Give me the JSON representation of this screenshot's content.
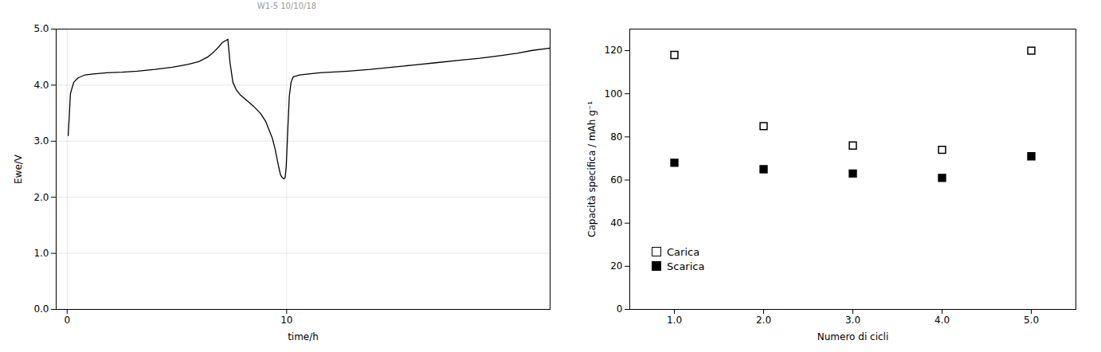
{
  "chart_data": [
    {
      "type": "line",
      "title": "W1-5 10/10/18",
      "x_label": "time/h",
      "y_label": "Ewe/V",
      "x": [
        0.05,
        0.15,
        0.3,
        0.5,
        0.8,
        1.2,
        1.8,
        2.5,
        3.2,
        4.0,
        4.8,
        5.5,
        6.0,
        6.4,
        6.7,
        6.9,
        7.05,
        7.15,
        7.25,
        7.32,
        7.32,
        7.42,
        7.55,
        7.7,
        7.9,
        8.2,
        8.5,
        8.8,
        9.05,
        9.2,
        9.35,
        9.48,
        9.58,
        9.66,
        9.72,
        9.72,
        9.8,
        9.87,
        9.93,
        9.98,
        10.05,
        10.12,
        10.2,
        10.3,
        10.3,
        10.6,
        11.0,
        11.5,
        12.0,
        12.8,
        13.8,
        14.8,
        15.8,
        16.8,
        17.8,
        18.8,
        19.8,
        20.5,
        21.2,
        21.8,
        22.0
      ],
      "values": [
        3.1,
        3.85,
        4.05,
        4.13,
        4.18,
        4.2,
        4.22,
        4.23,
        4.25,
        4.28,
        4.32,
        4.37,
        4.42,
        4.5,
        4.6,
        4.68,
        4.75,
        4.78,
        4.8,
        4.82,
        4.82,
        4.4,
        4.05,
        3.92,
        3.82,
        3.72,
        3.62,
        3.5,
        3.35,
        3.2,
        3.05,
        2.85,
        2.65,
        2.5,
        2.4,
        2.4,
        2.35,
        2.33,
        2.35,
        2.55,
        3.2,
        3.8,
        4.05,
        4.15,
        4.15,
        4.18,
        4.2,
        4.22,
        4.23,
        4.25,
        4.28,
        4.32,
        4.36,
        4.4,
        4.44,
        4.48,
        4.53,
        4.57,
        4.62,
        4.65,
        4.66
      ],
      "color": "#000000",
      "xlim": [
        -0.5,
        22
      ],
      "xticks": [
        0,
        10
      ],
      "ylim": [
        0,
        5
      ],
      "yticks": [
        0,
        1,
        2,
        3,
        4,
        5
      ],
      "grid": true
    },
    {
      "type": "scatter",
      "x_label": "Numero di cicli",
      "y_label": "Capacità specifica / mAh g⁻¹",
      "x": [
        1,
        2,
        3,
        4,
        5
      ],
      "series": [
        {
          "name": "Carica",
          "color": "#000000",
          "marker": "square_open",
          "values": [
            118,
            85,
            76,
            74,
            120
          ]
        },
        {
          "name": "Scarica",
          "color": "#000000",
          "marker": "square",
          "values": [
            68,
            65,
            63,
            61,
            71
          ]
        }
      ],
      "xlim": [
        0.5,
        5.5
      ],
      "xticks": [
        1,
        2,
        3,
        4,
        5
      ],
      "ylim": [
        0,
        130
      ],
      "yticks": [
        0,
        20,
        40,
        60,
        80,
        100,
        120
      ],
      "grid": false,
      "legend": "lower left"
    }
  ]
}
